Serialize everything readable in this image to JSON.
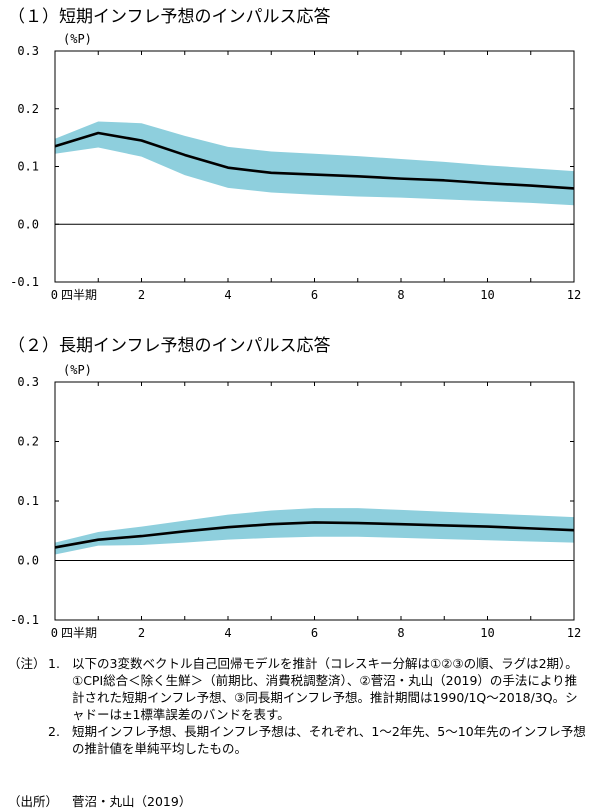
{
  "chart_data": [
    {
      "type": "line",
      "title": "（１）短期インフレ予想のインパルス応答",
      "ylabel": "(%P)",
      "xlabel": "",
      "x": [
        0,
        1,
        2,
        3,
        4,
        5,
        6,
        7,
        8,
        9,
        10,
        11,
        12
      ],
      "xticks": [
        "0",
        "2",
        "4",
        "6",
        "8",
        "10",
        "12"
      ],
      "xtick_values": [
        0,
        2,
        4,
        6,
        8,
        10,
        12
      ],
      "x_unit_label": "四半期",
      "yticks": [
        "0.3",
        "0.2",
        "0.1",
        "0.0",
        "-0.1"
      ],
      "ytick_values": [
        0.3,
        0.2,
        0.1,
        0.0,
        -0.1
      ],
      "ylim": [
        -0.1,
        0.3
      ],
      "xlim": [
        0,
        12
      ],
      "series": [
        {
          "values": [
            0.135,
            0.158,
            0.145,
            0.12,
            0.098,
            0.089,
            0.086,
            0.083,
            0.079,
            0.076,
            0.071,
            0.067,
            0.062
          ],
          "color": "#000000"
        }
      ],
      "band": {
        "upper": [
          0.148,
          0.178,
          0.175,
          0.153,
          0.134,
          0.126,
          0.122,
          0.118,
          0.113,
          0.108,
          0.102,
          0.097,
          0.092
        ],
        "lower": [
          0.122,
          0.133,
          0.117,
          0.085,
          0.063,
          0.055,
          0.051,
          0.048,
          0.046,
          0.043,
          0.04,
          0.037,
          0.033
        ],
        "color": "#8ecfdd"
      },
      "zero_line": true,
      "grid": false
    },
    {
      "type": "line",
      "title": "（２）長期インフレ予想のインパルス応答",
      "ylabel": "(%P)",
      "xlabel": "",
      "x": [
        0,
        1,
        2,
        3,
        4,
        5,
        6,
        7,
        8,
        9,
        10,
        11,
        12
      ],
      "xticks": [
        "0",
        "2",
        "4",
        "6",
        "8",
        "10",
        "12"
      ],
      "xtick_values": [
        0,
        2,
        4,
        6,
        8,
        10,
        12
      ],
      "x_unit_label": "四半期",
      "yticks": [
        "0.3",
        "0.2",
        "0.1",
        "0.0",
        "-0.1"
      ],
      "ytick_values": [
        0.3,
        0.2,
        0.1,
        0.0,
        -0.1
      ],
      "ylim": [
        -0.1,
        0.3
      ],
      "xlim": [
        0,
        12
      ],
      "series": [
        {
          "values": [
            0.022,
            0.035,
            0.041,
            0.049,
            0.056,
            0.061,
            0.064,
            0.063,
            0.061,
            0.059,
            0.057,
            0.054,
            0.051
          ],
          "color": "#000000"
        }
      ],
      "band": {
        "upper": [
          0.03,
          0.048,
          0.057,
          0.067,
          0.077,
          0.084,
          0.088,
          0.088,
          0.085,
          0.082,
          0.079,
          0.076,
          0.073
        ],
        "lower": [
          0.01,
          0.025,
          0.026,
          0.03,
          0.035,
          0.038,
          0.04,
          0.04,
          0.038,
          0.036,
          0.034,
          0.032,
          0.03
        ],
        "color": "#8ecfdd"
      },
      "zero_line": true,
      "grid": false
    }
  ],
  "notes": {
    "label": "（注）",
    "items": [
      {
        "num": "1.",
        "text": "以下の3変数ベクトル自己回帰モデルを推計（コレスキー分解は①②③の順、ラグは2期）。①CPI総合＜除く生鮮＞（前期比、消費税調整済）、②菅沼・丸山（2019）の手法により推計された短期インフレ予想、③同長期インフレ予想。推計期間は1990/1Q～2018/3Q。シャドーは±1標準誤差のバンドを表す。"
      },
      {
        "num": "2.",
        "text": "短期インフレ予想、長期インフレ予想は、それぞれ、1～2年先、5～10年先のインフレ予想の推計値を単純平均したもの。"
      }
    ]
  },
  "source": {
    "label": "（出所）",
    "text": "菅沼・丸山（2019）"
  }
}
